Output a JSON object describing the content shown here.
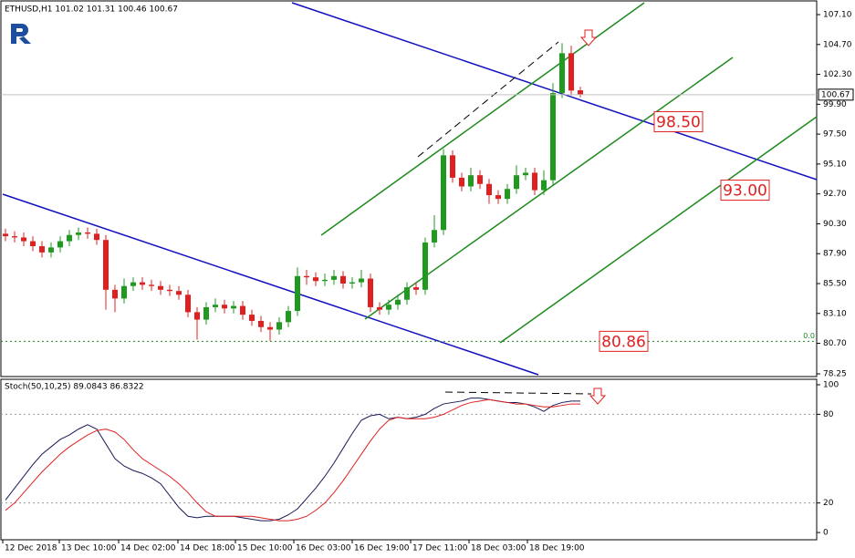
{
  "chart_data": [
    {
      "type": "candlestick",
      "title": "ETHUSD,H1 101.02 101.31 100.46 100.67",
      "x": [
        0.5,
        1.5,
        2.5,
        3.5,
        4.5,
        5.5,
        6.5,
        7.5,
        8.5,
        9.5,
        10.5,
        11.5,
        12.5,
        13.5,
        14.5,
        15.5,
        16.5,
        17.5,
        18.5,
        19.5,
        20.5,
        21.5,
        22.5,
        23.5,
        24.5,
        25.5,
        26.5,
        27.5,
        28.5,
        29.5,
        30.5,
        31.5,
        32.5,
        33.5,
        34.5,
        35.5,
        36.5,
        37.5,
        38.5,
        39.5,
        40.5,
        41.5,
        42.5,
        43.5,
        44.5,
        45.5,
        46.5,
        47.5,
        48.5,
        49.5,
        50.5,
        51.5,
        52.5,
        53.5,
        54.5,
        55.5,
        56.5,
        57.5,
        58.5,
        59.5,
        60.5,
        61.5,
        62.5,
        63.5
      ],
      "open": [
        89.5,
        89.3,
        89.2,
        88.9,
        88.5,
        88.0,
        88.4,
        88.9,
        89.4,
        89.6,
        89.5,
        89.0,
        85.0,
        84.3,
        85.3,
        85.6,
        85.4,
        85.3,
        85.0,
        84.9,
        84.6,
        83.2,
        82.6,
        83.6,
        83.8,
        83.5,
        83.7,
        83.0,
        82.5,
        82.0,
        81.8,
        82.4,
        83.3,
        86.1,
        86.0,
        85.7,
        85.8,
        86.1,
        85.5,
        85.6,
        85.9,
        83.6,
        83.4,
        83.8,
        84.2,
        85.2,
        85.0,
        88.8,
        89.8,
        95.8,
        94.0,
        93.3,
        94.2,
        93.5,
        92.6,
        92.3,
        93.1,
        94.2,
        94.4,
        93.0,
        93.8,
        100.8,
        104.0,
        101.02
      ],
      "high": [
        89.9,
        89.7,
        89.6,
        89.3,
        88.9,
        88.8,
        89.3,
        89.8,
        90.0,
        90.0,
        89.9,
        89.4,
        85.4,
        85.9,
        86.0,
        86.0,
        85.8,
        85.7,
        85.4,
        85.3,
        85.0,
        83.6,
        84.0,
        84.3,
        84.2,
        84.1,
        84.1,
        83.4,
        82.9,
        82.4,
        82.8,
        83.7,
        86.8,
        86.6,
        86.4,
        86.3,
        86.6,
        86.5,
        86.0,
        86.6,
        86.3,
        84.0,
        84.2,
        84.6,
        85.6,
        85.6,
        89.2,
        91.0,
        96.3,
        96.2,
        94.4,
        94.8,
        94.6,
        93.9,
        93.0,
        93.5,
        95.0,
        94.8,
        94.8,
        94.6,
        101.6,
        104.8,
        104.6,
        101.31
      ],
      "low": [
        88.9,
        88.8,
        88.5,
        88.1,
        87.6,
        87.6,
        88.0,
        88.5,
        89.0,
        89.1,
        88.6,
        83.4,
        83.2,
        83.9,
        84.9,
        85.0,
        84.9,
        84.6,
        84.5,
        84.2,
        82.8,
        81.0,
        82.2,
        83.2,
        83.1,
        83.1,
        82.6,
        82.1,
        81.6,
        80.9,
        81.4,
        82.0,
        82.9,
        85.4,
        85.3,
        85.3,
        85.4,
        85.1,
        85.1,
        85.2,
        83.2,
        83.0,
        83.0,
        83.4,
        83.8,
        84.6,
        84.6,
        88.4,
        89.4,
        93.6,
        92.9,
        92.9,
        93.1,
        91.9,
        91.9,
        91.9,
        92.7,
        93.8,
        92.6,
        92.6,
        93.4,
        100.4,
        100.6,
        100.46
      ],
      "close": [
        89.3,
        89.2,
        88.9,
        88.5,
        88.0,
        88.4,
        88.9,
        89.4,
        89.6,
        89.5,
        89.0,
        85.0,
        84.3,
        85.3,
        85.6,
        85.4,
        85.3,
        85.0,
        84.9,
        84.6,
        83.2,
        82.6,
        83.6,
        83.8,
        83.5,
        83.7,
        83.0,
        82.5,
        82.0,
        81.8,
        82.4,
        83.3,
        86.1,
        86.0,
        85.7,
        85.8,
        86.1,
        85.5,
        85.6,
        85.9,
        83.6,
        83.4,
        83.8,
        84.2,
        85.2,
        85.0,
        88.8,
        89.8,
        95.8,
        94.0,
        93.3,
        94.2,
        93.5,
        92.6,
        92.3,
        93.1,
        94.2,
        94.4,
        93.0,
        93.8,
        100.8,
        104.0,
        101.0,
        100.67
      ],
      "up_color": "#1f9a1f",
      "down_color": "#e02020",
      "xlim": [
        0,
        89.4
      ],
      "ylim": [
        78.03,
        108.2
      ],
      "yticks": [
        {
          "value": 107.1,
          "label": "107.10"
        },
        {
          "value": 104.7,
          "label": "104.70"
        },
        {
          "value": 102.3,
          "label": "102.30"
        },
        {
          "value": 99.9,
          "label": "99.90"
        },
        {
          "value": 97.5,
          "label": "97.50"
        },
        {
          "value": 95.1,
          "label": "95.10"
        },
        {
          "value": 92.7,
          "label": "92.70"
        },
        {
          "value": 90.3,
          "label": "90.30"
        },
        {
          "value": 87.9,
          "label": "87.90"
        },
        {
          "value": 85.5,
          "label": "85.50"
        },
        {
          "value": 83.1,
          "label": "83.10"
        },
        {
          "value": 80.7,
          "label": "80.70"
        },
        78.25
      ],
      "last_price": 100.67,
      "annotations": [
        {
          "value": 98.5,
          "label": "98.50"
        },
        {
          "value": 93.0,
          "label": "93.00"
        },
        {
          "value": 80.86,
          "label": "80.86"
        },
        {
          "value": 80.86,
          "label": "0.0"
        }
      ]
    },
    {
      "type": "line",
      "title": "Stoch(50,10,25) 89.0843 86.8322",
      "x": [
        0.5,
        1.5,
        2.5,
        3.5,
        4.5,
        5.5,
        6.5,
        7.5,
        8.5,
        9.5,
        10.5,
        11.5,
        12.5,
        13.5,
        14.5,
        15.5,
        16.5,
        17.5,
        18.5,
        19.5,
        20.5,
        21.5,
        22.5,
        23.5,
        24.5,
        25.5,
        26.5,
        27.5,
        28.5,
        29.5,
        30.5,
        31.5,
        32.5,
        33.5,
        34.5,
        35.5,
        36.5,
        37.5,
        38.5,
        39.5,
        40.5,
        41.5,
        42.5,
        43.5,
        44.5,
        45.5,
        46.5,
        47.5,
        48.5,
        49.5,
        50.5,
        51.5,
        52.5,
        53.5,
        54.5,
        55.5,
        56.5,
        57.5,
        58.5,
        59.5,
        60.5,
        61.5,
        62.5,
        63.5
      ],
      "series": [
        {
          "color": "#1a1a5a",
          "values": [
            22,
            30,
            38,
            46,
            53,
            58,
            63,
            66,
            70,
            73,
            70,
            60,
            50,
            45,
            42,
            40,
            37,
            33,
            25,
            17,
            11,
            10,
            11,
            11,
            11,
            11,
            10,
            9,
            8,
            8,
            9,
            12,
            16,
            23,
            30,
            38,
            47,
            57,
            67,
            76,
            79,
            80,
            77,
            78,
            77,
            78,
            80,
            84,
            87,
            88,
            89,
            91,
            91,
            90,
            89,
            88,
            88,
            87,
            85,
            82,
            86,
            88,
            89,
            89
          ]
        },
        {
          "color": "#e02020",
          "values": [
            15,
            20,
            27,
            34,
            41,
            47,
            53,
            58,
            62,
            66,
            69,
            70,
            68,
            63,
            56,
            50,
            46,
            42,
            38,
            33,
            27,
            20,
            14,
            11,
            11,
            11,
            11,
            11,
            10,
            9,
            8,
            8,
            9,
            11,
            15,
            20,
            27,
            35,
            44,
            53,
            62,
            70,
            76,
            78,
            77,
            77,
            77,
            78,
            80,
            83,
            86,
            88,
            89,
            90,
            89,
            88,
            87,
            87,
            86,
            85,
            85,
            86,
            87,
            87
          ]
        }
      ],
      "xlim": [
        0,
        89.4
      ],
      "ylim": [
        -4.9,
        103.7
      ],
      "yticks": [
        0,
        20,
        80,
        100
      ],
      "xticks": [
        {
          "value": 0.2,
          "label": "12 Dec 2018"
        },
        {
          "value": 6.4,
          "label": "13 Dec 10:00"
        },
        {
          "value": 12.9,
          "label": "14 Dec 02:00"
        },
        {
          "value": 19.4,
          "label": "14 Dec 18:00"
        },
        {
          "value": 25.7,
          "label": "15 Dec 10:00"
        },
        {
          "value": 32.1,
          "label": "16 Dec 03:00"
        },
        {
          "value": 38.5,
          "label": "16 Dec 19:00"
        },
        {
          "value": 44.9,
          "label": "17 Dec 11:00"
        },
        {
          "value": 51.3,
          "label": "18 Dec 03:00"
        },
        {
          "value": 57.7,
          "label": "18 Dec 19:00"
        }
      ]
    }
  ]
}
